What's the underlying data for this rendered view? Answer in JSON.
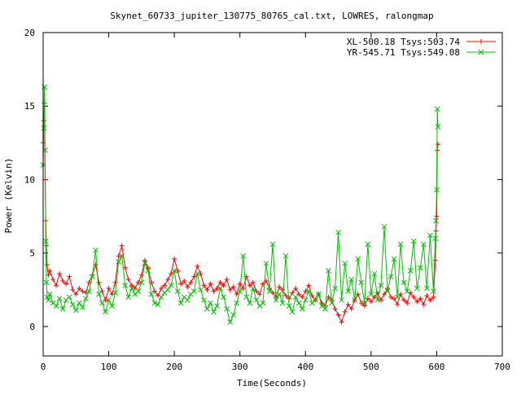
{
  "chart_data": {
    "type": "scatter",
    "title": "Skynet_60733_jupiter_130775_80765_cal.txt, LOWRES, ralongmap",
    "xlabel": "Time(Seconds)",
    "ylabel": "Power (Kelvin)",
    "xlim": [
      0,
      700
    ],
    "ylim": [
      -2,
      20
    ],
    "xticks": [
      "0",
      "100",
      "200",
      "300",
      "400",
      "500",
      "600",
      "700"
    ],
    "yticks": [
      "0",
      "5",
      "10",
      "15",
      "20"
    ],
    "legend_position": "top-right",
    "series": [
      {
        "name": "XL-500.18 Tsys:503.74",
        "color": "#ff0000",
        "marker": "+",
        "x": [
          0,
          1,
          2,
          3,
          4,
          5,
          6,
          8,
          10,
          15,
          20,
          25,
          30,
          35,
          40,
          45,
          50,
          55,
          60,
          65,
          70,
          75,
          80,
          85,
          90,
          95,
          100,
          105,
          110,
          115,
          120,
          125,
          130,
          135,
          140,
          145,
          150,
          155,
          160,
          165,
          170,
          175,
          180,
          185,
          190,
          195,
          200,
          205,
          210,
          215,
          220,
          225,
          230,
          235,
          240,
          245,
          250,
          255,
          260,
          265,
          270,
          275,
          280,
          285,
          290,
          295,
          300,
          305,
          310,
          315,
          320,
          325,
          330,
          335,
          340,
          345,
          350,
          355,
          360,
          365,
          370,
          375,
          380,
          385,
          390,
          395,
          400,
          405,
          410,
          415,
          420,
          425,
          430,
          435,
          440,
          445,
          450,
          455,
          460,
          465,
          470,
          475,
          480,
          485,
          490,
          495,
          500,
          505,
          510,
          515,
          520,
          525,
          530,
          535,
          540,
          545,
          550,
          555,
          560,
          565,
          570,
          575,
          580,
          585,
          590,
          595,
          598,
          599,
          600,
          601,
          602
        ],
        "y": [
          12.5,
          14.0,
          15.2,
          10.0,
          7.2,
          5.5,
          4.2,
          3.5,
          3.8,
          3.2,
          2.8,
          3.6,
          3.1,
          2.9,
          3.4,
          2.5,
          2.2,
          2.6,
          2.4,
          2.3,
          3.0,
          3.5,
          4.2,
          3.0,
          2.4,
          1.8,
          2.6,
          2.2,
          3.0,
          4.8,
          5.5,
          4.0,
          3.2,
          2.8,
          2.6,
          3.0,
          3.5,
          4.5,
          4.0,
          3.0,
          2.4,
          2.1,
          2.6,
          2.8,
          3.2,
          3.6,
          4.6,
          3.8,
          2.9,
          3.1,
          2.7,
          3.0,
          3.4,
          4.1,
          3.6,
          2.8,
          2.5,
          2.9,
          2.4,
          2.6,
          3.0,
          2.8,
          3.2,
          2.5,
          2.7,
          2.2,
          2.9,
          2.6,
          3.4,
          2.8,
          3.0,
          2.4,
          2.2,
          2.9,
          3.1,
          2.6,
          2.3,
          2.0,
          2.7,
          2.5,
          2.1,
          1.9,
          2.3,
          2.6,
          2.2,
          2.0,
          2.4,
          2.8,
          2.1,
          1.8,
          2.2,
          1.6,
          1.4,
          2.0,
          1.8,
          1.2,
          0.8,
          0.3,
          1.0,
          1.5,
          1.2,
          1.8,
          2.2,
          1.6,
          1.4,
          1.9,
          1.7,
          2.0,
          2.3,
          1.8,
          2.2,
          2.6,
          2.0,
          1.9,
          1.5,
          2.2,
          1.8,
          1.6,
          2.3,
          2.0,
          1.7,
          1.9,
          1.5,
          2.1,
          1.8,
          2.0,
          4.5,
          6.5,
          7.5,
          12.0,
          12.4
        ]
      },
      {
        "name": "YR-545.71 Tsys:549.08",
        "color": "#00c000",
        "marker": "x",
        "x": [
          0,
          1,
          2,
          3,
          4,
          5,
          6,
          8,
          10,
          15,
          20,
          25,
          30,
          35,
          40,
          45,
          50,
          55,
          60,
          65,
          70,
          75,
          80,
          85,
          90,
          95,
          100,
          105,
          110,
          115,
          120,
          125,
          130,
          135,
          140,
          145,
          150,
          155,
          160,
          165,
          170,
          175,
          180,
          185,
          190,
          195,
          200,
          205,
          210,
          215,
          220,
          225,
          230,
          235,
          240,
          245,
          250,
          255,
          260,
          265,
          270,
          275,
          280,
          285,
          290,
          295,
          300,
          305,
          310,
          315,
          320,
          325,
          330,
          335,
          340,
          345,
          350,
          355,
          360,
          365,
          370,
          375,
          380,
          385,
          390,
          395,
          400,
          405,
          410,
          415,
          420,
          425,
          430,
          435,
          440,
          445,
          450,
          455,
          460,
          465,
          470,
          475,
          480,
          485,
          490,
          495,
          500,
          505,
          510,
          515,
          520,
          525,
          530,
          535,
          540,
          545,
          550,
          555,
          560,
          565,
          570,
          575,
          580,
          585,
          590,
          595,
          598,
          599,
          600,
          601,
          602
        ],
        "y": [
          11.0,
          13.5,
          16.3,
          12.0,
          5.8,
          3.0,
          2.0,
          1.8,
          2.2,
          1.6,
          1.4,
          1.9,
          1.2,
          1.8,
          2.0,
          1.5,
          1.1,
          1.6,
          1.3,
          1.9,
          2.4,
          3.4,
          5.2,
          2.2,
          1.6,
          1.0,
          1.8,
          1.4,
          2.3,
          4.4,
          4.8,
          2.8,
          2.0,
          2.6,
          2.2,
          2.4,
          3.0,
          4.3,
          3.8,
          2.2,
          1.6,
          1.5,
          2.0,
          2.3,
          2.5,
          2.8,
          3.8,
          2.4,
          1.6,
          2.0,
          1.8,
          2.2,
          2.4,
          3.6,
          2.5,
          1.8,
          1.2,
          1.6,
          1.0,
          1.4,
          2.6,
          2.0,
          1.2,
          0.3,
          0.8,
          1.6,
          2.4,
          4.8,
          2.0,
          1.6,
          2.6,
          1.8,
          1.4,
          1.6,
          4.3,
          2.4,
          5.6,
          1.8,
          2.2,
          1.6,
          4.8,
          1.4,
          1.0,
          2.0,
          1.6,
          1.2,
          1.8,
          2.4,
          1.6,
          1.8,
          2.2,
          1.4,
          1.2,
          3.8,
          1.6,
          2.6,
          6.4,
          1.8,
          4.3,
          2.4,
          3.2,
          1.8,
          4.6,
          3.0,
          1.6,
          5.6,
          2.2,
          3.6,
          1.8,
          2.8,
          6.8,
          2.4,
          3.4,
          4.6,
          2.0,
          5.6,
          3.0,
          2.4,
          3.8,
          5.8,
          2.6,
          4.0,
          5.6,
          2.6,
          6.2,
          2.4,
          6.0,
          7.2,
          9.3,
          14.8,
          13.6
        ]
      }
    ]
  }
}
